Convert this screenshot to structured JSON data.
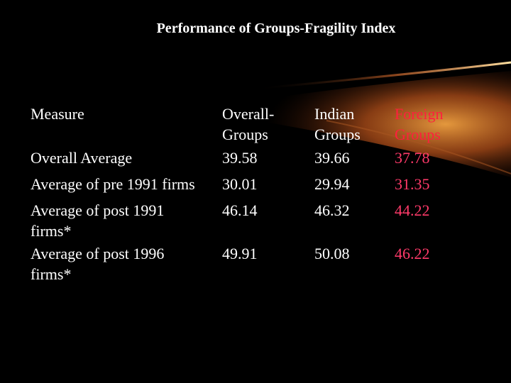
{
  "slide": {
    "title": "Performance of Groups-Fragility Index",
    "colors": {
      "background": "#000000",
      "text": "#ffffff",
      "foreign_header": "#ff1f3d",
      "foreign_values": "#ff3a6a",
      "swoosh": "#d2691e"
    }
  },
  "table": {
    "headers": {
      "measure": "Measure",
      "overall": "Overall-\nGroups",
      "indian": "Indian\nGroups",
      "foreign": "Foreign\nGroups"
    },
    "rows": [
      {
        "measure": "Overall Average",
        "overall": "39.58",
        "indian": "39.66",
        "foreign": "37.78"
      },
      {
        "measure": "Average of pre 1991 firms",
        "overall": "30.01",
        "indian": "29.94",
        "foreign": "31.35"
      },
      {
        "measure": "Average of post 1991\nfirms*",
        "overall": "46.14",
        "indian": "46.32",
        "foreign": "44.22"
      },
      {
        "measure": "Average of post 1996\nfirms*",
        "overall": "49.91",
        "indian": "50.08",
        "foreign": "46.22"
      }
    ]
  }
}
